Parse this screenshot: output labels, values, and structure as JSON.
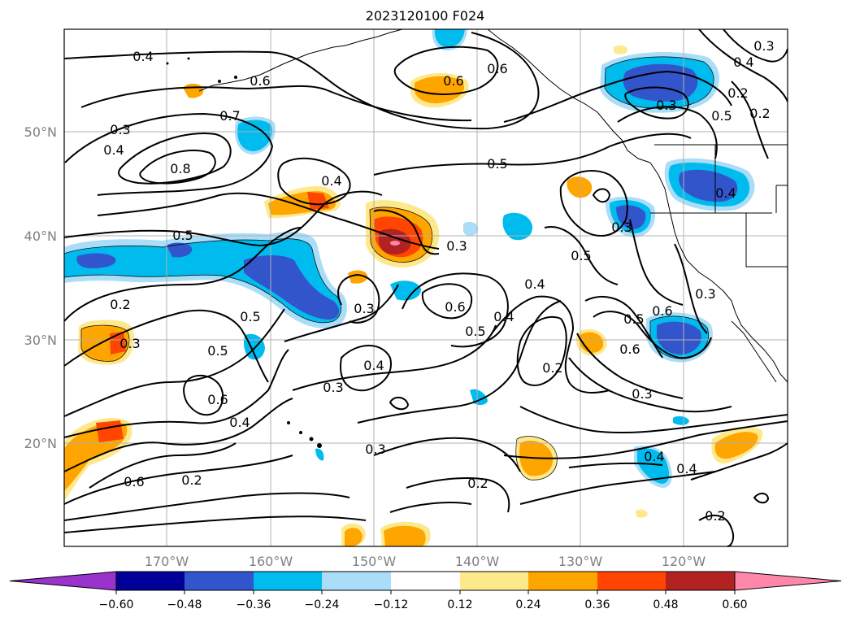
{
  "title": "2023120100 F024",
  "map": {
    "lat_labels": [
      "50°N",
      "40°N",
      "30°N",
      "20°N"
    ],
    "lon_labels": [
      "170°W",
      "160°W",
      "150°W",
      "140°W",
      "130°W",
      "120°W"
    ]
  },
  "colorbar": {
    "ticks": [
      "−0.60",
      "−0.48",
      "−0.36",
      "−0.24",
      "−0.12",
      "0.12",
      "0.24",
      "0.36",
      "0.48",
      "0.60"
    ],
    "colors": [
      "#9933cc",
      "#000099",
      "#3355cc",
      "#00bbee",
      "#aaddf7",
      "#ffffff",
      "#fde98c",
      "#ffa500",
      "#ff4500",
      "#b22222",
      "#ff88aa",
      "#ff88aa"
    ]
  },
  "contour_labels": [
    "0.4",
    "0.6",
    "0.7",
    "0.8",
    "0.3",
    "0.4",
    "0.6",
    "0.6",
    "0.5",
    "0.4",
    "0.3",
    "0.5",
    "0.3",
    "0.5",
    "0.6",
    "0.5",
    "0.4",
    "0.2",
    "0.3",
    "0.5",
    "0.4",
    "0.3",
    "0.5",
    "0.4",
    "0.2",
    "0.6",
    "0.4",
    "0.6",
    "0.2",
    "0.3",
    "0.2",
    "0.3",
    "0.3",
    "0.6",
    "0.3",
    "0.2",
    "0.6",
    "0.4",
    "0.4",
    "0.3",
    "0.2",
    "0.4",
    "0.5",
    "0.3",
    "0.4",
    "0.5",
    "0.2"
  ]
}
